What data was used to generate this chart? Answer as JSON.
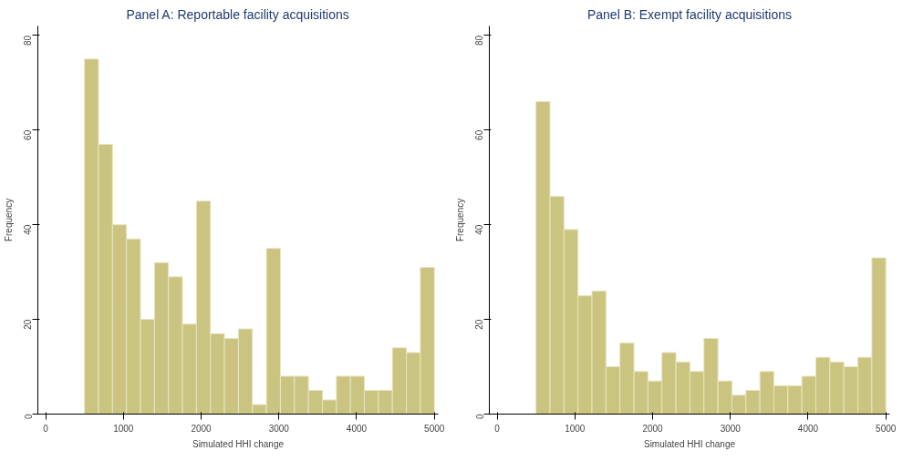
{
  "chart_data": [
    {
      "type": "histogram",
      "title": "Panel A: Reportable facility acquisitions",
      "xlabel": "Simulated HHI change",
      "ylabel": "Frequency",
      "color": "#cbc480",
      "bins": [
        500,
        680,
        860,
        1040,
        1220,
        1400,
        1580,
        1760,
        1940,
        2120,
        2300,
        2480,
        2660,
        2840,
        3020,
        3200,
        3380,
        3560,
        3740,
        3920,
        4100,
        4280,
        4460,
        4640,
        4820,
        5000
      ],
      "values": [
        75,
        57,
        40,
        37,
        20,
        32,
        29,
        19,
        45,
        17,
        16,
        18,
        2,
        35,
        8,
        8,
        5,
        3,
        8,
        8,
        5,
        5,
        14,
        13,
        31
      ],
      "xlim": [
        -100,
        5050
      ],
      "xticks": [
        0,
        1000,
        2000,
        3000,
        4000,
        5000
      ],
      "ylim": [
        0,
        82
      ],
      "yticks": [
        0,
        20,
        40,
        60,
        80
      ],
      "grid": false
    },
    {
      "type": "histogram",
      "title": "Panel B: Exempt facility acquisitions",
      "xlabel": "Simulated HHI change",
      "ylabel": "Frequency",
      "color": "#cbc480",
      "bins": [
        500,
        680,
        860,
        1040,
        1220,
        1400,
        1580,
        1760,
        1940,
        2120,
        2300,
        2480,
        2660,
        2840,
        3020,
        3200,
        3380,
        3560,
        3740,
        3920,
        4100,
        4280,
        4460,
        4640,
        4820,
        5000
      ],
      "values": [
        66,
        46,
        39,
        25,
        26,
        10,
        15,
        9,
        7,
        13,
        11,
        9,
        16,
        7,
        4,
        5,
        9,
        6,
        6,
        8,
        12,
        11,
        10,
        12,
        33
      ],
      "xlim": [
        -100,
        5050
      ],
      "xticks": [
        0,
        1000,
        2000,
        3000,
        4000,
        5000
      ],
      "ylim": [
        0,
        82
      ],
      "yticks": [
        0,
        20,
        40,
        60,
        80
      ],
      "grid": false
    }
  ]
}
